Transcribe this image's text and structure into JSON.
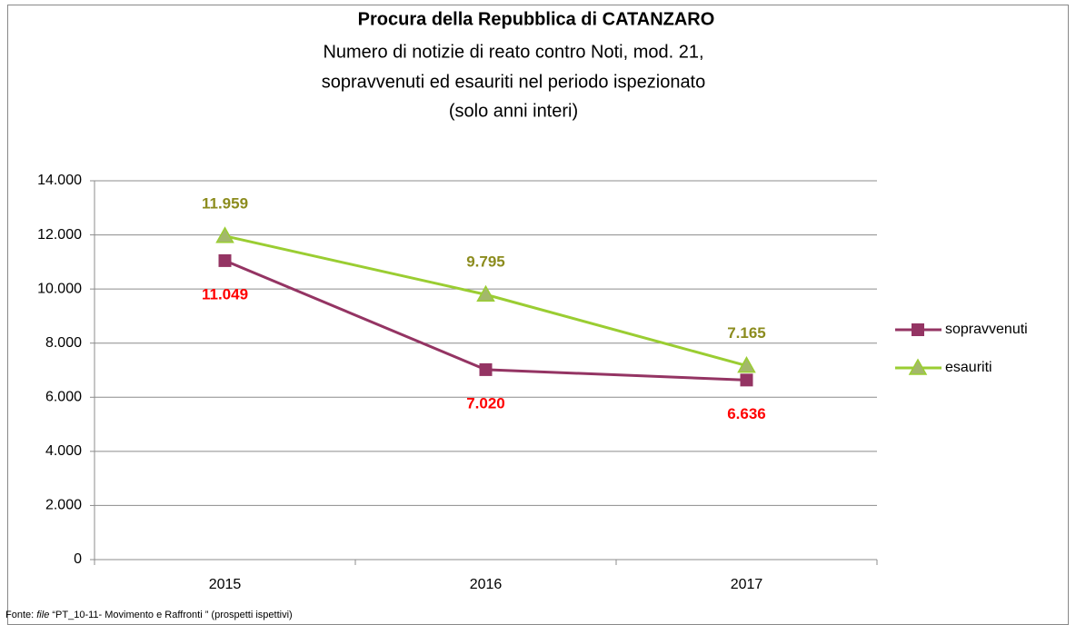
{
  "chart_data": {
    "type": "line",
    "title": "Procura della Repubblica di CATANZARO",
    "subtitle": [
      "Numero di notizie di reato contro Noti, mod. 21,",
      "sopravvenuti ed esauriti nel periodo ispezionato",
      "(solo anni interi)"
    ],
    "categories": [
      "2015",
      "2016",
      "2017"
    ],
    "series": [
      {
        "name": "sopravvenuti",
        "color": "#943463",
        "marker": "square",
        "label_color": "#ff0000",
        "values": [
          11049,
          7020,
          6636
        ],
        "value_labels": [
          "11.049",
          "7.020",
          "6.636"
        ]
      },
      {
        "name": "esauriti",
        "color": "#9acd32",
        "marker": "triangle",
        "label_color": "#8c8c1e",
        "values": [
          11959,
          9795,
          7165
        ],
        "value_labels": [
          "11.959",
          "9.795",
          "7.165"
        ]
      }
    ],
    "ylim": [
      0,
      14000
    ],
    "yticks": [
      0,
      {
        "value": 2000,
        "label": "2.000"
      },
      {
        "value": 4000,
        "label": "4.000"
      },
      {
        "value": 6000,
        "label": "6.000"
      },
      {
        "value": 8000,
        "label": "8.000"
      },
      {
        "value": 10000,
        "label": "10.000"
      },
      {
        "value": 12000,
        "label": "12.000"
      },
      {
        "value": 14000,
        "label": "14.000"
      }
    ],
    "grid": true,
    "legend": "right",
    "source": {
      "prefix": "Fonte: ",
      "italic": "file",
      "rest": " “PT_10-11- Movimento e Raffronti ” (prospetti ispettivi)"
    }
  }
}
